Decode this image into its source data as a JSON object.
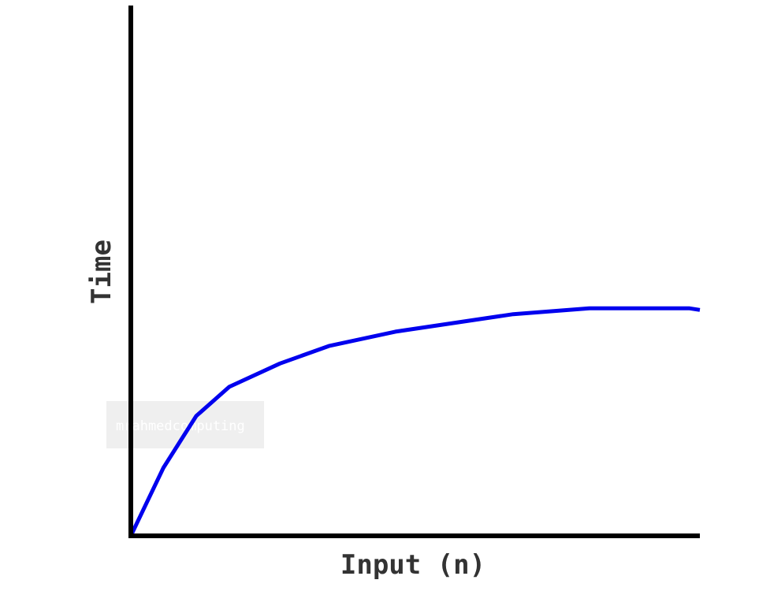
{
  "chart_data": {
    "type": "line",
    "title": "",
    "xlabel": "Input (n)",
    "ylabel": "Time",
    "ticks_shown": false,
    "grid": false,
    "xlim": [
      0,
      100
    ],
    "ylim": [
      0,
      100
    ],
    "series": [
      {
        "color": "#0000ee",
        "x": [
          0,
          5.7,
          11.5,
          17.3,
          26.2,
          34.8,
          46.5,
          67.2,
          80.6,
          98.2,
          100
        ],
        "y": [
          0,
          12.8,
          22.6,
          28.1,
          32.5,
          35.8,
          38.5,
          41.8,
          42.9,
          42.9,
          42.6
        ]
      }
    ]
  },
  "watermark": {
    "text": "mrahmedcomputing"
  },
  "colors": {
    "axis": "#000000",
    "line": "#0000ee",
    "label": "#333333",
    "watermark_box": "#efefef"
  }
}
